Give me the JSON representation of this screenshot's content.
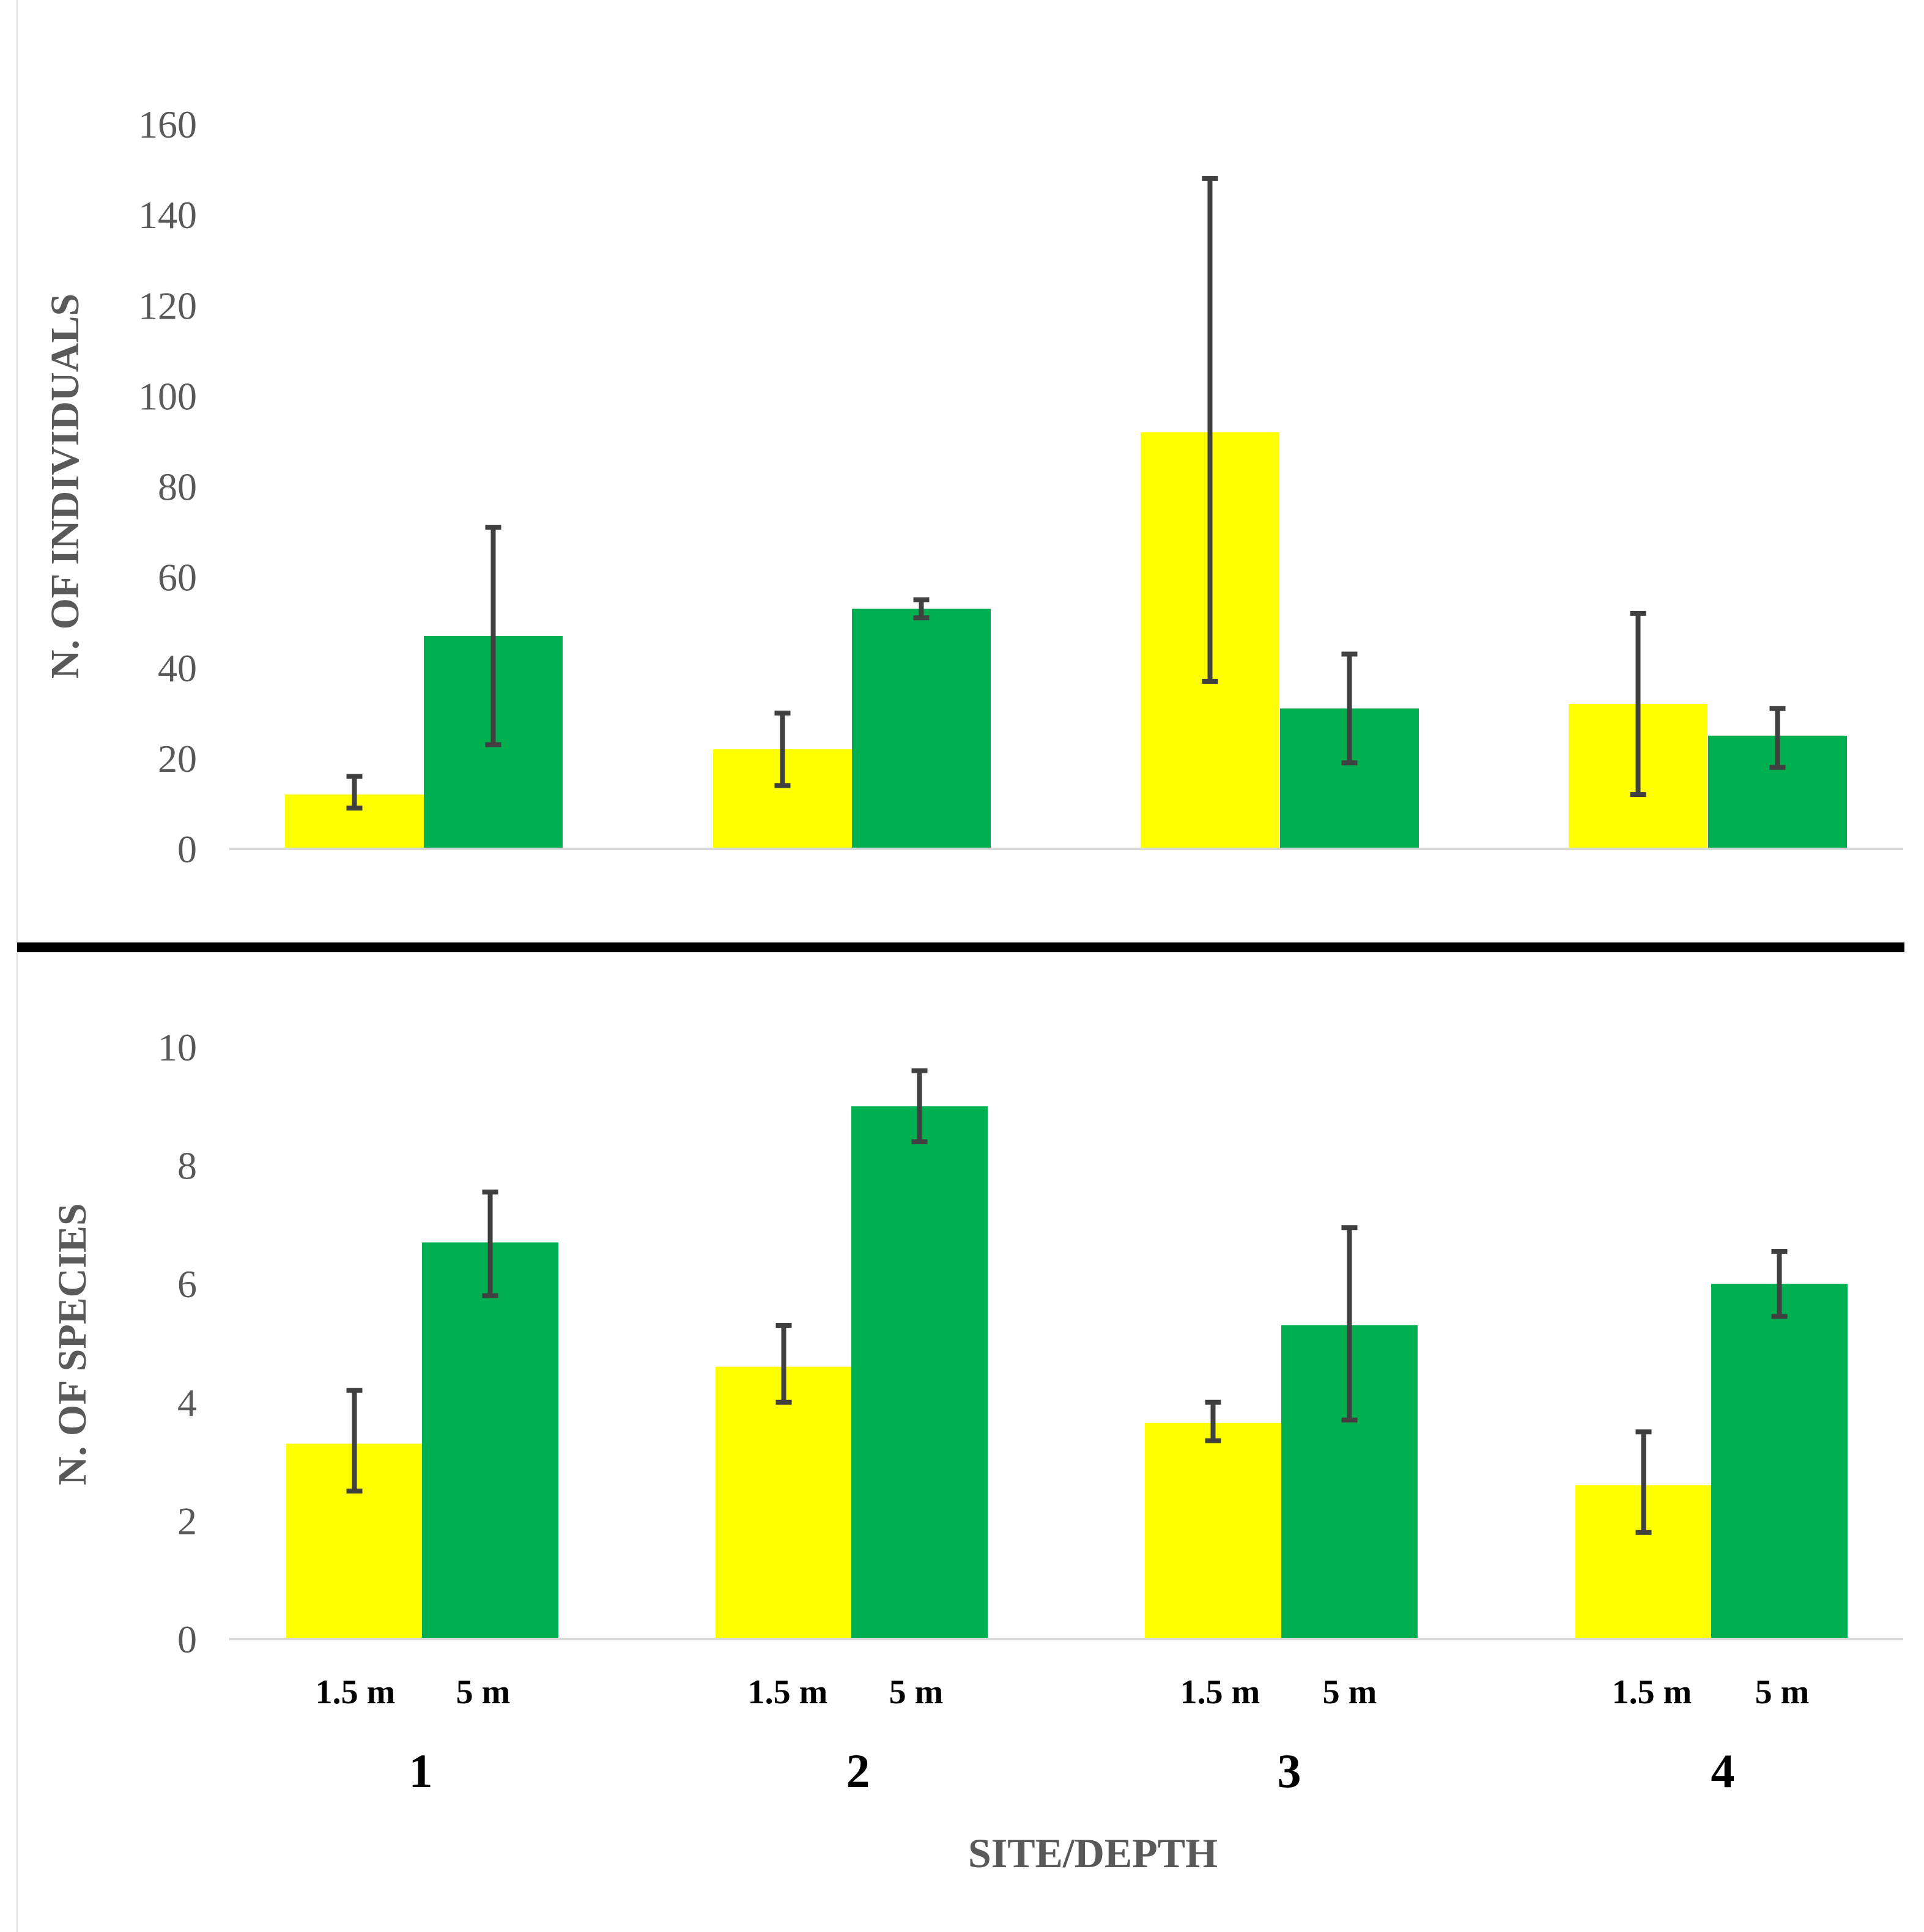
{
  "colors": {
    "depth_1_5": "#FFFF00",
    "depth_5": "#00B050",
    "error_bar": "#404040",
    "axis_text": "#595959",
    "separator": "#000000"
  },
  "chart_data": [
    {
      "type": "bar",
      "panel": "top",
      "ylabel": "N. OF INDIVIDUALS",
      "ylim": [
        0,
        160
      ],
      "yticks": [
        "0",
        "20",
        "40",
        "60",
        "80",
        "100",
        "120",
        "140",
        "160"
      ],
      "categories": [
        "1",
        "2",
        "3",
        "4"
      ],
      "series": [
        {
          "name": "1.5 m",
          "color": "#FFFF00",
          "values": [
            12,
            22,
            92,
            32
          ],
          "err_low": [
            9,
            14,
            37,
            12
          ],
          "err_high": [
            16,
            30,
            148,
            52
          ]
        },
        {
          "name": "5 m",
          "color": "#00B050",
          "values": [
            47,
            53,
            31,
            25
          ],
          "err_low": [
            23,
            51,
            19,
            18
          ],
          "err_high": [
            71,
            55,
            43,
            31
          ]
        }
      ]
    },
    {
      "type": "bar",
      "panel": "bottom",
      "ylabel": "N. OF SPECIES",
      "ylim": [
        0,
        10
      ],
      "yticks": [
        "0",
        "2",
        "4",
        "6",
        "8",
        "10"
      ],
      "categories": [
        "1",
        "2",
        "3",
        "4"
      ],
      "xlabel": "SITE/DEPTH",
      "series": [
        {
          "name": "1.5 m",
          "color": "#FFFF00",
          "values": [
            3.3,
            4.6,
            3.65,
            2.6
          ],
          "err_low": [
            2.5,
            4.0,
            3.35,
            1.8
          ],
          "err_high": [
            4.2,
            5.3,
            4.0,
            3.5
          ]
        },
        {
          "name": "5 m",
          "color": "#00B050",
          "values": [
            6.7,
            9.0,
            5.3,
            6.0
          ],
          "err_low": [
            5.8,
            8.4,
            3.7,
            5.45
          ],
          "err_high": [
            7.55,
            9.6,
            6.95,
            6.55
          ]
        }
      ]
    }
  ],
  "x_axis": {
    "depth_labels": [
      "1.5 m",
      "5 m"
    ],
    "site_labels": [
      "1",
      "2",
      "3",
      "4"
    ],
    "title": "SITE/DEPTH"
  }
}
